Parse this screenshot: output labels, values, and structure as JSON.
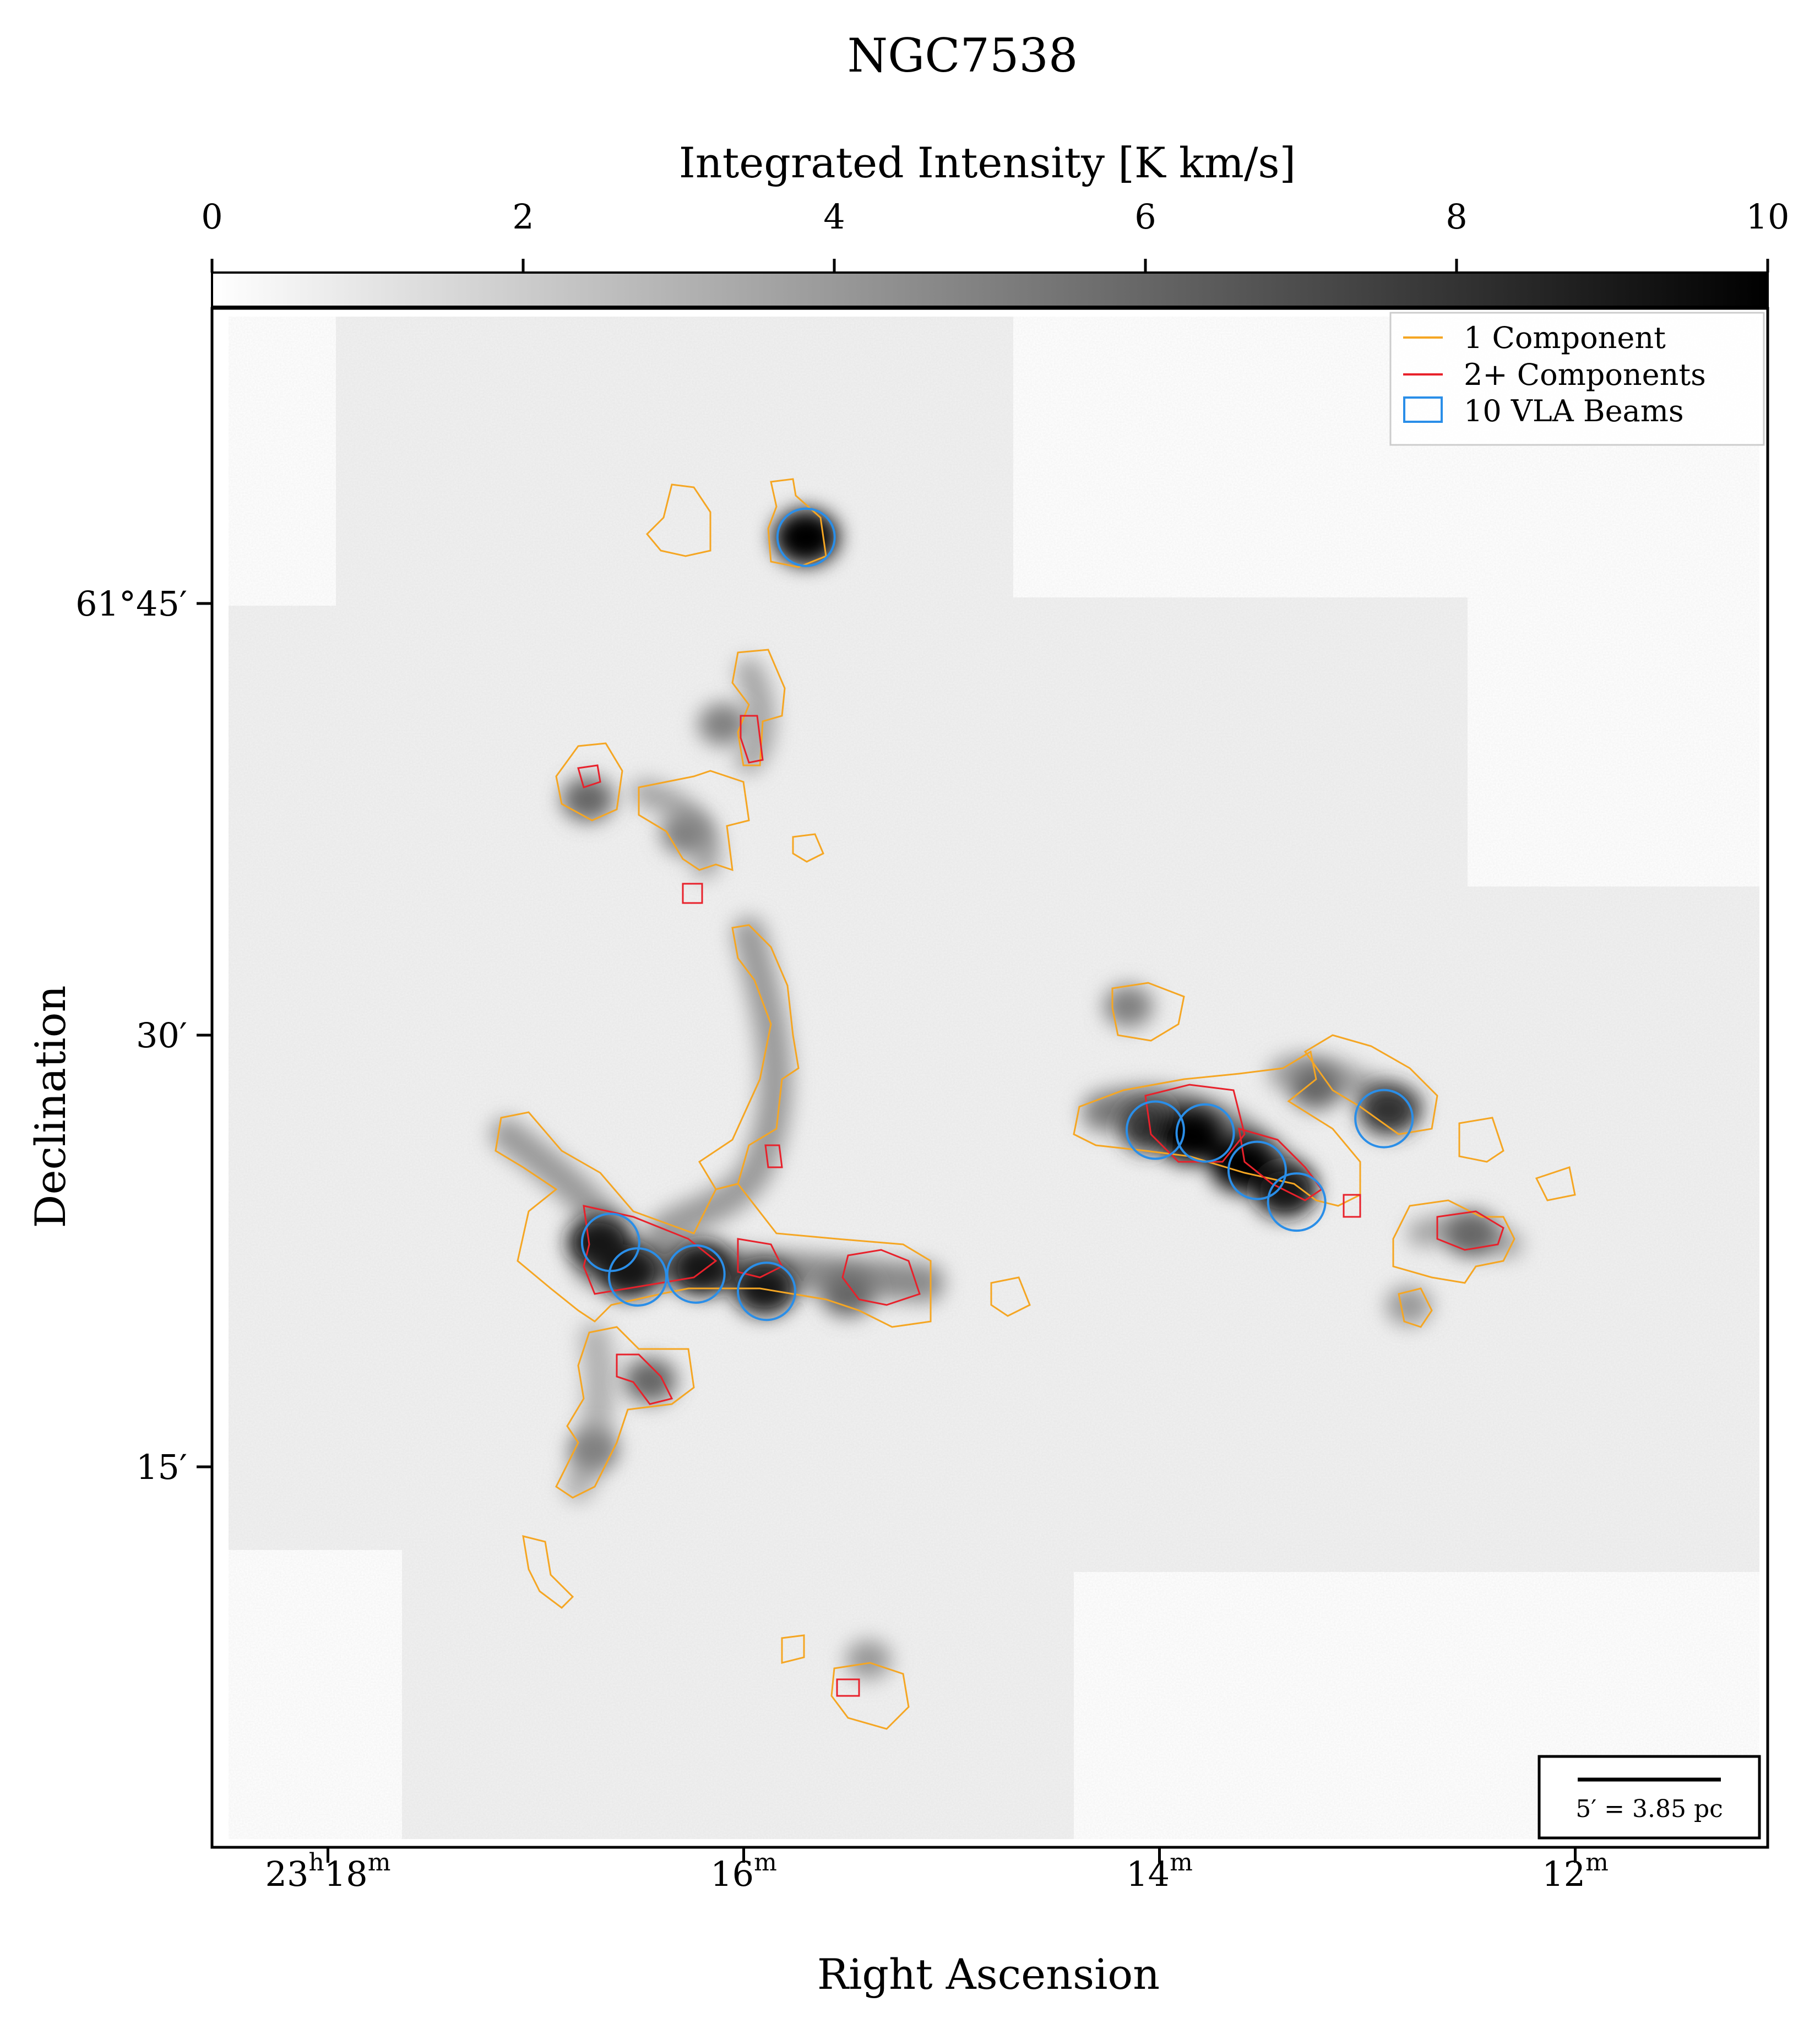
{
  "chart_data": {
    "type": "heatmap",
    "title": "NGC7538",
    "colorbar": {
      "label": "Integrated Intensity [K km/s]",
      "range": [
        0,
        10
      ],
      "ticks": [
        "0",
        "2",
        "4",
        "6",
        "8",
        "10"
      ],
      "colormap": "greys",
      "position": "top"
    },
    "xlabel": "Right Ascension",
    "ylabel": "Declination",
    "x_ticks": [
      {
        "base": "23",
        "sup1": "h",
        "mid": "18",
        "sup2": "m",
        "value_min": 18
      },
      {
        "base": "",
        "sup1": "",
        "mid": "16",
        "sup2": "m",
        "value_min": 16
      },
      {
        "base": "",
        "sup1": "",
        "mid": "14",
        "sup2": "m",
        "value_min": 14
      },
      {
        "base": "",
        "sup1": "",
        "mid": "12",
        "sup2": "m",
        "value_min": 12
      }
    ],
    "y_ticks": [
      {
        "label": "61°45′",
        "value_arcmin": 45
      },
      {
        "label": "30′",
        "value_arcmin": 30
      },
      {
        "label": "15′",
        "value_arcmin": 15
      }
    ],
    "legend": {
      "placement": "top-right",
      "entries": [
        {
          "label": "1 Component",
          "kind": "line",
          "color": "#f5a623"
        },
        {
          "label": "2+ Components",
          "kind": "line",
          "color": "#e8212b"
        },
        {
          "label": "10 VLA Beams",
          "kind": "box",
          "color": "#2a8ee8"
        }
      ]
    },
    "scalebar": {
      "label": "5′ = 3.85 pc",
      "placement": "bottom-right"
    },
    "colors": {
      "one_component": "#f5a623",
      "two_plus": "#e8212b",
      "vla_beam": "#2a8ee8"
    },
    "sources": [
      {
        "ra_min": 15.7,
        "dec_arcmin": 47.3,
        "peak": 10
      },
      {
        "ra_min": 16.1,
        "dec_arcmin": 40.8,
        "peak": 5
      },
      {
        "ra_min": 16.75,
        "dec_arcmin": 38.2,
        "peak": 6
      },
      {
        "ra_min": 16.28,
        "dec_arcmin": 37.0,
        "peak": 5
      },
      {
        "ra_min": 16.7,
        "dec_arcmin": 22.8,
        "peak": 9
      },
      {
        "ra_min": 16.55,
        "dec_arcmin": 21.8,
        "peak": 9
      },
      {
        "ra_min": 16.2,
        "dec_arcmin": 21.9,
        "peak": 9
      },
      {
        "ra_min": 15.9,
        "dec_arcmin": 21.2,
        "peak": 9
      },
      {
        "ra_min": 15.5,
        "dec_arcmin": 21.0,
        "peak": 6
      },
      {
        "ra_min": 16.45,
        "dec_arcmin": 18.0,
        "peak": 6
      },
      {
        "ra_min": 16.72,
        "dec_arcmin": 15.6,
        "peak": 5
      },
      {
        "ra_min": 14.05,
        "dec_arcmin": 26.8,
        "peak": 8
      },
      {
        "ra_min": 13.85,
        "dec_arcmin": 26.5,
        "peak": 10
      },
      {
        "ra_min": 13.6,
        "dec_arcmin": 25.5,
        "peak": 10
      },
      {
        "ra_min": 13.4,
        "dec_arcmin": 24.6,
        "peak": 9
      },
      {
        "ra_min": 12.9,
        "dec_arcmin": 27.4,
        "peak": 8
      },
      {
        "ra_min": 13.25,
        "dec_arcmin": 28.2,
        "peak": 6
      },
      {
        "ra_min": 14.15,
        "dec_arcmin": 31.0,
        "peak": 5
      },
      {
        "ra_min": 12.5,
        "dec_arcmin": 23.1,
        "peak": 6
      },
      {
        "ra_min": 12.8,
        "dec_arcmin": 20.6,
        "peak": 4
      },
      {
        "ra_min": 15.4,
        "dec_arcmin": 8.3,
        "peak": 4
      }
    ],
    "vla_beams": [
      {
        "ra_min": 15.7,
        "dec_arcmin": 47.3
      },
      {
        "ra_min": 16.64,
        "dec_arcmin": 22.8
      },
      {
        "ra_min": 16.51,
        "dec_arcmin": 21.6
      },
      {
        "ra_min": 16.23,
        "dec_arcmin": 21.7
      },
      {
        "ra_min": 15.89,
        "dec_arcmin": 21.1
      },
      {
        "ra_min": 14.02,
        "dec_arcmin": 26.7
      },
      {
        "ra_min": 13.78,
        "dec_arcmin": 26.6
      },
      {
        "ra_min": 13.53,
        "dec_arcmin": 25.3
      },
      {
        "ra_min": 13.34,
        "dec_arcmin": 24.2
      },
      {
        "ra_min": 12.92,
        "dec_arcmin": 27.1
      }
    ]
  }
}
